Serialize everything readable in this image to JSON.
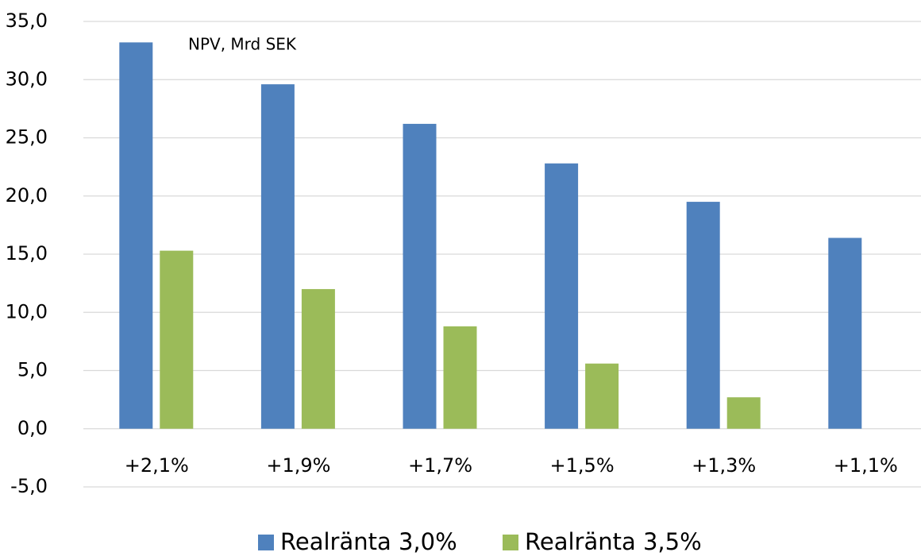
{
  "chart_data": {
    "type": "bar",
    "annotation": "NPV, Mrd SEK",
    "categories": [
      "+2,1%",
      "+1,9%",
      "+1,7%",
      "+1,5%",
      "+1,3%",
      "+1,1%"
    ],
    "series": [
      {
        "name": "Realränta 3,0%",
        "color": "#4f81bd",
        "values": [
          33.2,
          29.6,
          26.2,
          22.8,
          19.5,
          16.4
        ]
      },
      {
        "name": "Realränta 3,5%",
        "color": "#9bbb59",
        "values": [
          15.3,
          12.0,
          8.8,
          5.6,
          2.7,
          null
        ]
      }
    ],
    "ylim": [
      -5,
      35
    ],
    "yticks": [
      {
        "value": -5,
        "label": "-5,0"
      },
      {
        "value": 0,
        "label": "0,0"
      },
      {
        "value": 5,
        "label": "5,0"
      },
      {
        "value": 10,
        "label": "10,0"
      },
      {
        "value": 15,
        "label": "15,0"
      },
      {
        "value": 20,
        "label": "20,0"
      },
      {
        "value": 25,
        "label": "25,0"
      },
      {
        "value": 30,
        "label": "30,0"
      },
      {
        "value": 35,
        "label": "35,0"
      }
    ],
    "grid": true,
    "legend": "bottom"
  }
}
